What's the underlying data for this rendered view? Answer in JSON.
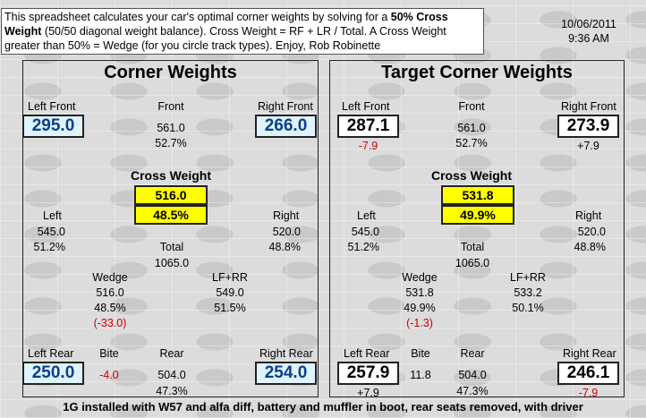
{
  "intro": {
    "part1": "This spreadsheet calculates your car's optimal corner weights by solving for a ",
    "bold1": "50% Cross Weight",
    "part2": " (50/50 diagonal weight balance).  Cross Weight = RF + LR / Total. A Cross Weight greater than 50% = Wedge (for you circle track types). Enjoy, Rob Robinette"
  },
  "stamp": {
    "date": "10/06/2011",
    "time": "9:36 AM"
  },
  "left": {
    "title": "Corner Weights",
    "left_front_label": "Left Front",
    "left_front": "295.0",
    "front_label": "Front",
    "front_total": "561.0",
    "front_pct": "52.7%",
    "right_front_label": "Right Front",
    "right_front": "266.0",
    "cross_label": "Cross Weight",
    "cross_value": "516.0",
    "cross_pct": "48.5%",
    "left_label": "Left",
    "left_total": "545.0",
    "left_pct": "51.2%",
    "right_label": "Right",
    "right_total": "520.0",
    "right_pct": "48.8%",
    "total_label": "Total",
    "total": "1065.0",
    "wedge_label": "Wedge",
    "wedge_value": "516.0",
    "wedge_pct": "48.5%",
    "wedge_delta": "(-33.0)",
    "lfrr_label": "LF+RR",
    "lfrr_value": "549.0",
    "lfrr_pct": "51.5%",
    "left_rear_label": "Left Rear",
    "left_rear": "250.0",
    "bite_label": "Bite",
    "bite": "-4.0",
    "rear_label": "Rear",
    "rear_total": "504.0",
    "rear_pct": "47.3%",
    "right_rear_label": "Right Rear",
    "right_rear": "254.0"
  },
  "right": {
    "title": "Target Corner Weights",
    "left_front_label": "Left Front",
    "left_front": "287.1",
    "left_front_delta": "-7.9",
    "front_label": "Front",
    "front_total": "561.0",
    "front_pct": "52.7%",
    "right_front_label": "Right Front",
    "right_front": "273.9",
    "right_front_delta": "+7.9",
    "cross_label": "Cross Weight",
    "cross_value": "531.8",
    "cross_pct": "49.9%",
    "left_label": "Left",
    "left_total": "545.0",
    "left_pct": "51.2%",
    "right_label": "Right",
    "right_total": "520.0",
    "right_pct": "48.8%",
    "total_label": "Total",
    "total": "1065.0",
    "wedge_label": "Wedge",
    "wedge_value": "531.8",
    "wedge_pct": "49.9%",
    "wedge_delta": "(-1.3)",
    "lfrr_label": "LF+RR",
    "lfrr_value": "533.2",
    "lfrr_pct": "50.1%",
    "left_rear_label": "Left Rear",
    "left_rear": "257.9",
    "left_rear_delta": "+7.9",
    "bite_label": "Bite",
    "bite": "11.8",
    "rear_label": "Rear",
    "rear_total": "504.0",
    "rear_pct": "47.3%",
    "right_rear_label": "Right Rear",
    "right_rear": "246.1",
    "right_rear_delta": "-7.9"
  },
  "footer": "1G installed with W57 and alfa diff, battery and muffler in boot, rear seats removed, with driver",
  "colors": {
    "input_fill": "#dff3ff",
    "input_text": "#0a3f8a",
    "highlight": "#ffff00",
    "negative": "#d00000"
  }
}
